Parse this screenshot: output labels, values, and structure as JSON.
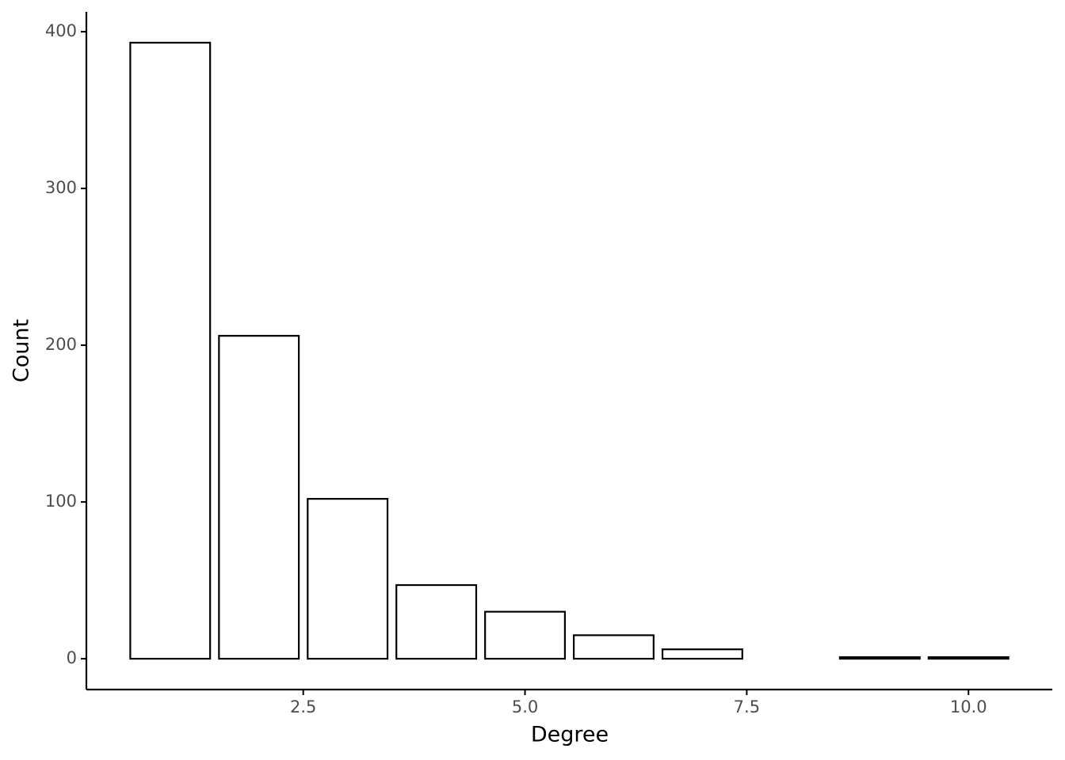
{
  "chart_data": {
    "type": "bar",
    "x": [
      1,
      2,
      3,
      4,
      5,
      6,
      7,
      9,
      10
    ],
    "values": [
      393,
      206,
      102,
      47,
      30,
      15,
      6,
      1,
      1
    ],
    "x_label": "Degree",
    "y_label": "Count",
    "xlim": [
      0.055,
      10.945
    ],
    "ylim": [
      -19.65,
      412.65
    ],
    "xticks": [
      2.5,
      {
        "value": 5,
        "label": "5.0"
      },
      7.5,
      {
        "value": 10,
        "label": "10.0"
      }
    ],
    "yticks": [
      0,
      100,
      200,
      300,
      400
    ],
    "fill": "#ffffff",
    "edge_color": "#000000",
    "grid": false
  }
}
